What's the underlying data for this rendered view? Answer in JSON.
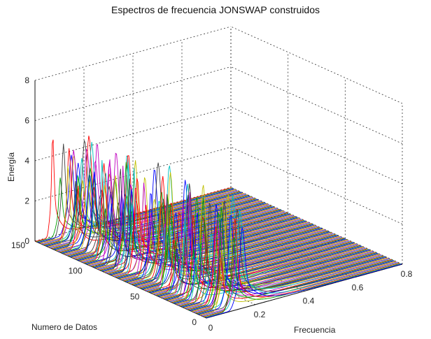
{
  "chart_data": {
    "type": "line",
    "view": "3d-waterfall",
    "title": "Espectros de frecuencia JONSWAP construidos",
    "xlabel": "Frecuencia",
    "ylabel": "Numero de Datos",
    "zlabel": "Energía",
    "xlim": [
      0,
      0.8
    ],
    "ylim": [
      0,
      150
    ],
    "zlim": [
      0,
      8
    ],
    "x_ticks": [
      "0",
      "0.2",
      "0.4",
      "0.6",
      "0.8"
    ],
    "y_ticks": [
      "0",
      "50",
      "100",
      "150"
    ],
    "z_ticks": [
      "0",
      "2",
      "4",
      "6",
      "8"
    ],
    "grid": true,
    "series_count": 150,
    "series_description_values": {
      "peak_frequency_range": [
        0.07,
        0.16
      ],
      "peak_energy_range": [
        2.2,
        5.4
      ],
      "energy_near_zero_above_frequency": 0.35
    },
    "colors": [
      "#0000ff",
      "#00a000",
      "#ff0000",
      "#00bfbf",
      "#bf00bf",
      "#bfbf00",
      "#404040"
    ]
  }
}
